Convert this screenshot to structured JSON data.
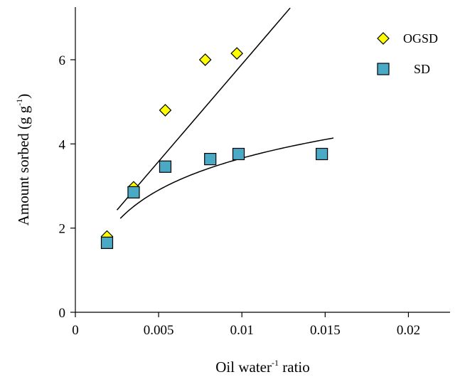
{
  "chart_data": {
    "type": "scatter",
    "xlabel_parts": [
      "Oil water",
      "-1",
      " ratio"
    ],
    "ylabel_parts": [
      "Amount sorbed (g g",
      "-1",
      ")"
    ],
    "xlim": [
      0,
      0.0225
    ],
    "ylim": [
      0,
      7.25
    ],
    "x_ticks": [
      0,
      0.005,
      0.01,
      0.015,
      0.02
    ],
    "x_tick_labels": [
      "0",
      "0.005",
      "0.01",
      "0.015",
      "0.02"
    ],
    "y_ticks": [
      0,
      2,
      4,
      6
    ],
    "y_tick_labels": [
      "0",
      "2",
      "4",
      "6"
    ],
    "legend_position": "top-right",
    "series": [
      {
        "name": "OGSD",
        "marker": "diamond",
        "color": "#ffff00",
        "x": [
          0.0019,
          0.0035,
          0.0054,
          0.0078,
          0.0097
        ],
        "y": [
          1.8,
          2.97,
          4.8,
          6.0,
          6.15
        ],
        "trend": {
          "type": "linear",
          "x_range": [
            0.0025,
            0.0129
          ],
          "y_range": [
            2.43,
            7.23
          ]
        }
      },
      {
        "name": "SD",
        "marker": "square",
        "color": "#4aa9c5",
        "x": [
          0.0019,
          0.0035,
          0.0054,
          0.0081,
          0.0098,
          0.0148
        ],
        "y": [
          1.65,
          2.85,
          3.46,
          3.64,
          3.76,
          3.76
        ],
        "trend": {
          "type": "logarithmic",
          "x_range": [
            0.0027,
            0.0155
          ],
          "y_range": [
            2.23,
            4.14
          ]
        }
      }
    ]
  }
}
